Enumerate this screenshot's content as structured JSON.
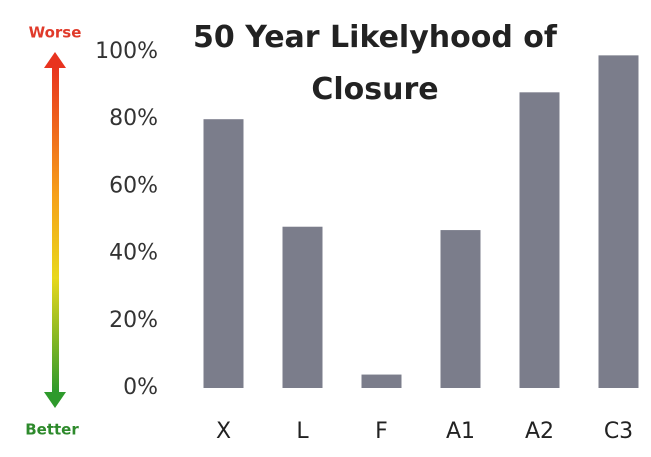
{
  "chart_data": {
    "type": "bar",
    "title": "50 Year Likelyhood of Closure",
    "categories": [
      "X",
      "L",
      "F",
      "A1",
      "A2",
      "C3"
    ],
    "values": [
      80,
      48,
      4,
      47,
      88,
      99
    ],
    "color": "#7b7d8b",
    "ylim": [
      0,
      100
    ],
    "yticks": [
      {
        "value": 0,
        "label": "0%"
      },
      {
        "value": 20,
        "label": "20%"
      },
      {
        "value": 40,
        "label": "40%"
      },
      {
        "value": 60,
        "label": "60%"
      },
      {
        "value": 80,
        "label": "80%"
      },
      {
        "value": 100,
        "label": "100%"
      }
    ],
    "grid": false,
    "annotations": [
      "Worse",
      "Better"
    ]
  }
}
